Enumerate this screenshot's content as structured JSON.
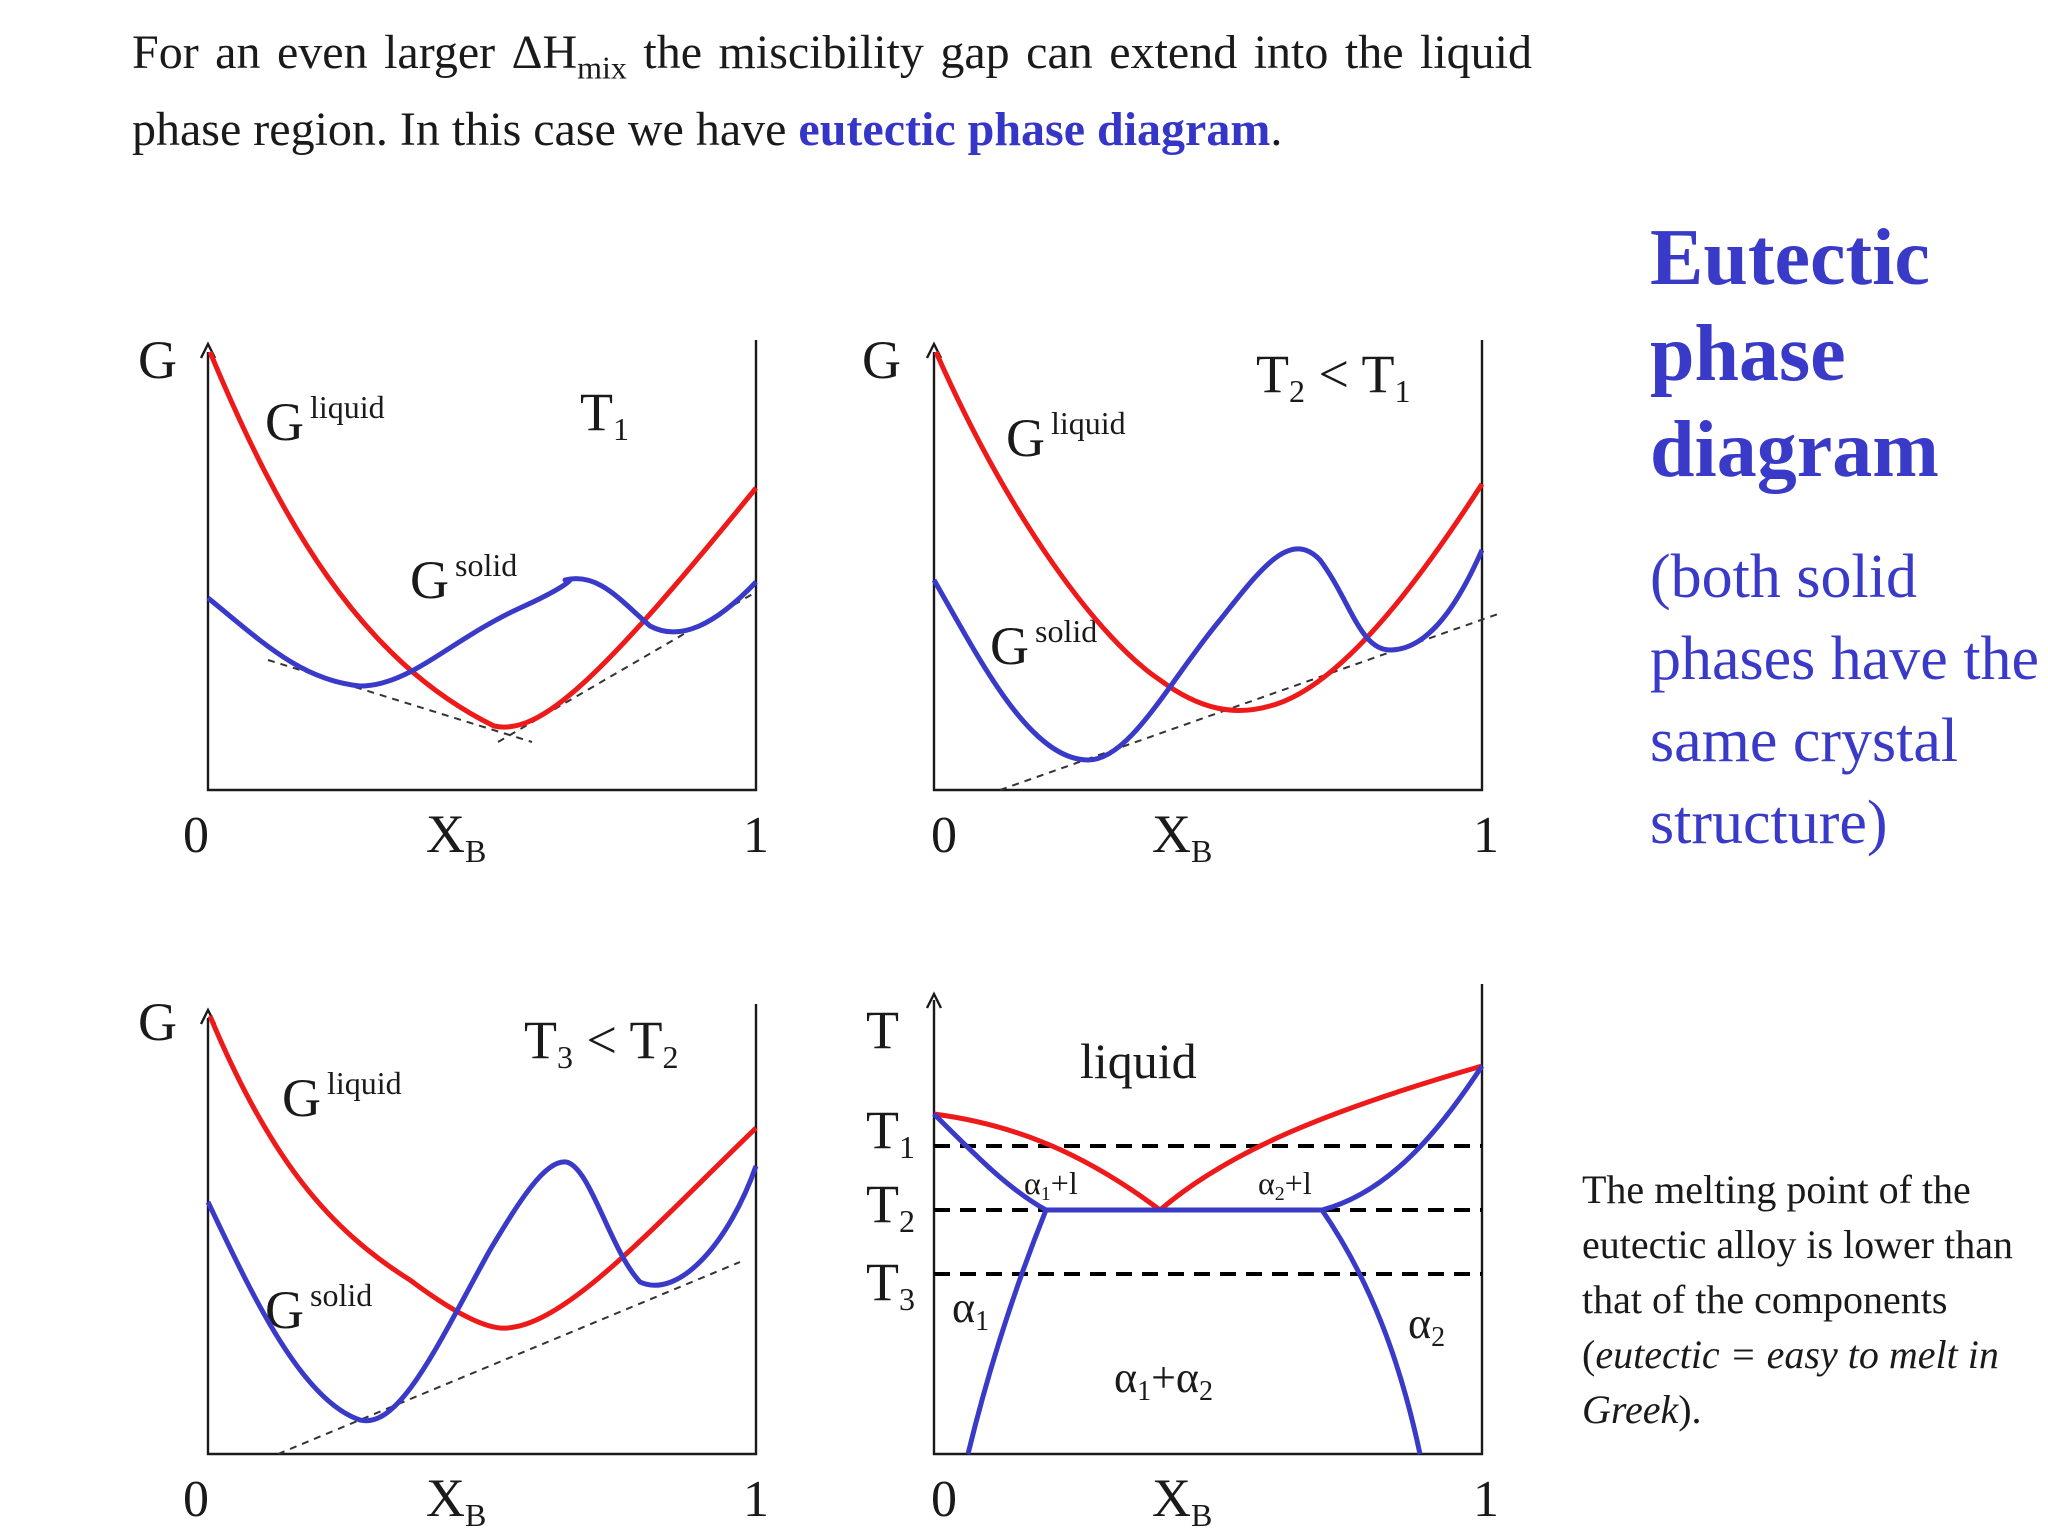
{
  "intro": {
    "part1": "For an even larger ΔH",
    "sub": "mix",
    "part2": " the miscibility gap can extend into the liquid phase region.  In this case we have ",
    "highlight": "eutectic phase diagram",
    "end": "."
  },
  "sidebar": {
    "title_lines": [
      "Eutectic",
      "phase",
      "diagram"
    ],
    "note": "(both solid phases have the same crystal structure)"
  },
  "caption": {
    "part1": "The melting point of the eutectic alloy is lower than that of the components (",
    "italic": "eutectic = easy to melt in Greek",
    "part2": ")."
  },
  "panels": {
    "g_axis": "G",
    "t_axis": "T",
    "x_axis": "X",
    "x_sub": "B",
    "x_min": "0",
    "x_max": "1",
    "liquid": "G",
    "liquid_sup": "liquid",
    "solid": "G",
    "solid_sup": "solid"
  },
  "panel1": {
    "temp": "T",
    "temp_sub": "1"
  },
  "panel2": {
    "temp": "T",
    "temp_sub": "2",
    "rel": " < T",
    "rel_sub": "1"
  },
  "panel3": {
    "temp": "T",
    "temp_sub": "3",
    "rel": " < T",
    "rel_sub": "2"
  },
  "panel4": {
    "liquid_label": "liquid",
    "t1": "T",
    "t1_sub": "1",
    "t2": "T",
    "t2_sub": "2",
    "t3": "T",
    "t3_sub": "3",
    "a1l": "α",
    "a1l_sub": "1",
    "a1l_tail": "+l",
    "a2l": "α",
    "a2l_sub": "2",
    "a2l_tail": "+l",
    "alpha": "α",
    "alpha1_sub": "1",
    "alpha2_sub": "2",
    "a1a2_sub1": "1",
    "a1a2_plus": "+α",
    "a1a2_sub2": "2"
  },
  "colors": {
    "liquid_curve": "#ee1a1a",
    "solid_curve": "#3a3ac8",
    "highlight": "#3535c8"
  },
  "icons": [
    "arrow-up-icon"
  ]
}
